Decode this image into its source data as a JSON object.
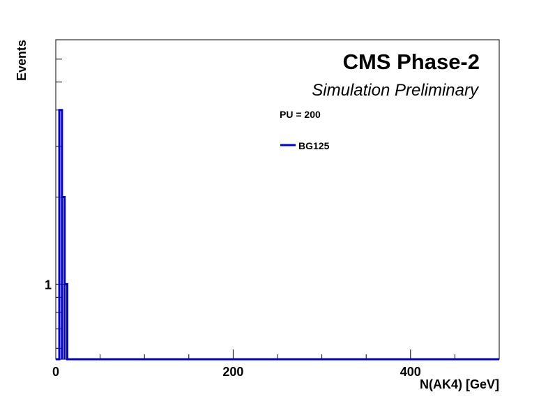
{
  "chart_data": {
    "type": "histogram",
    "header": {
      "experiment": "CMS Phase-2",
      "status": "Simulation Preliminary"
    },
    "annotation": "PU = 200",
    "xlabel": "N(AK4) [GeV]",
    "ylabel": "Events",
    "xlim": [
      0,
      500
    ],
    "ylim": [
      0.55,
      7.0
    ],
    "yscale": "log",
    "xticks": [
      0,
      200,
      400
    ],
    "yticks": [
      1
    ],
    "grid": false,
    "legend_position": "top-center",
    "series": [
      {
        "name": "BG125",
        "color": "#0000cc",
        "bins": [
          {
            "x0": 4,
            "x1": 7,
            "y": 4
          },
          {
            "x0": 7,
            "x1": 10,
            "y": 2
          },
          {
            "x0": 10,
            "x1": 13,
            "y": 1
          }
        ]
      }
    ]
  }
}
